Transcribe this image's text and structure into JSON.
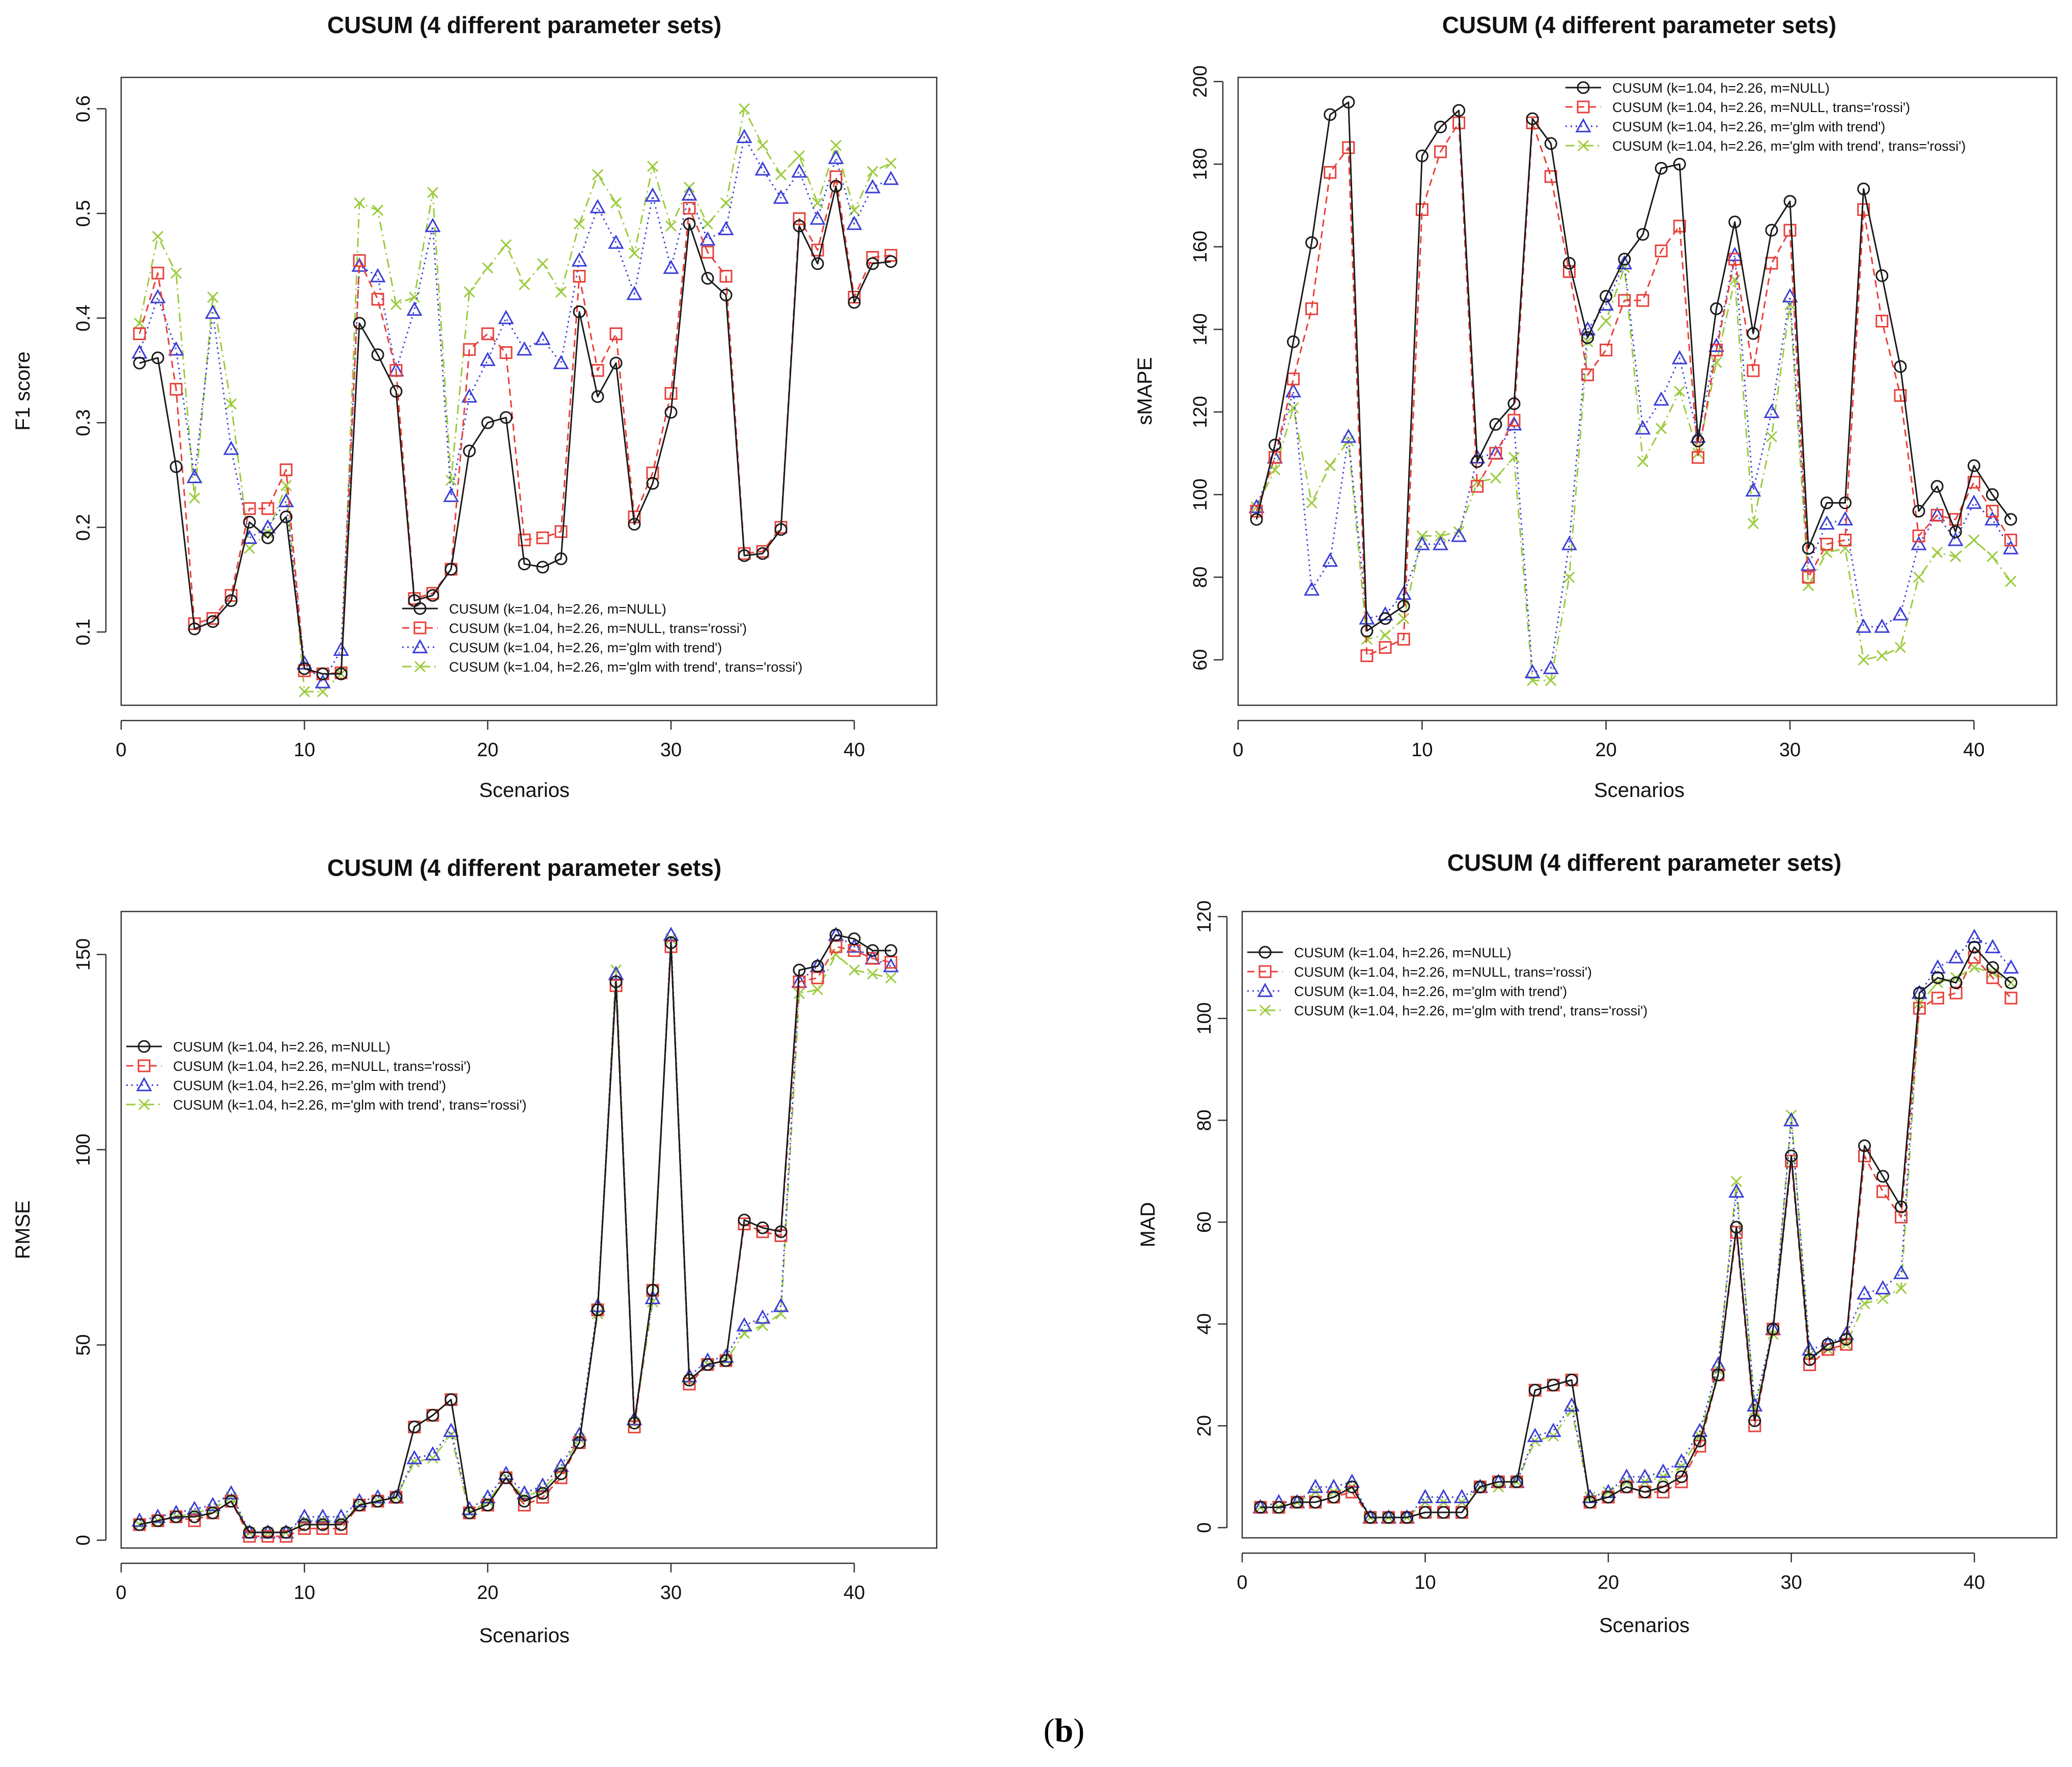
{
  "caption": {
    "open": "(",
    "label": "b",
    "close": ")"
  },
  "series_styles": [
    {
      "color": "#1a1a1a",
      "dash": "",
      "marker": "circle"
    },
    {
      "color": "#e8403a",
      "dash": "14,9",
      "marker": "square"
    },
    {
      "color": "#3b3fd6",
      "dash": "3,7",
      "marker": "triangle"
    },
    {
      "color": "#9ccb3e",
      "dash": "18,8,3,8",
      "marker": "cross"
    }
  ],
  "chart_data": [
    {
      "type": "line",
      "title": "CUSUM (4 different parameter sets)",
      "xlabel": "Scenarios",
      "ylabel": "F1 score",
      "xlim": [
        0,
        44.5
      ],
      "ylim": [
        0.03,
        0.63
      ],
      "xticks": [
        0,
        10,
        20,
        30,
        40
      ],
      "yticks": [
        0.1,
        0.2,
        0.3,
        0.4,
        0.5,
        0.6
      ],
      "ytick_labels": [
        "0.1",
        "0.2",
        "0.3",
        "0.4",
        "0.5",
        "0.6"
      ],
      "legend": "bottom-center",
      "x": [
        1,
        2,
        3,
        4,
        5,
        6,
        7,
        8,
        9,
        10,
        11,
        12,
        13,
        14,
        15,
        16,
        17,
        18,
        19,
        20,
        21,
        22,
        23,
        24,
        25,
        26,
        27,
        28,
        29,
        30,
        31,
        32,
        33,
        34,
        35,
        36,
        37,
        38,
        39,
        40,
        41,
        42
      ],
      "series": [
        {
          "name": "CUSUM (k=1.04, h=2.26, m=NULL)",
          "values": [
            0.357,
            0.362,
            0.258,
            0.103,
            0.11,
            0.13,
            0.205,
            0.19,
            0.21,
            0.065,
            0.06,
            0.06,
            0.395,
            0.365,
            0.33,
            0.13,
            0.135,
            0.16,
            0.273,
            0.3,
            0.305,
            0.165,
            0.162,
            0.17,
            0.406,
            0.325,
            0.357,
            0.203,
            0.242,
            0.31,
            0.49,
            0.438,
            0.422,
            0.173,
            0.175,
            0.198,
            0.488,
            0.452,
            0.526,
            0.415,
            0.452,
            0.454
          ]
        },
        {
          "name": "CUSUM (k=1.04, h=2.26, m=NULL, trans='rossi')",
          "values": [
            0.385,
            0.443,
            0.332,
            0.108,
            0.113,
            0.135,
            0.218,
            0.218,
            0.255,
            0.063,
            0.06,
            0.061,
            0.455,
            0.418,
            0.35,
            0.132,
            0.137,
            0.16,
            0.37,
            0.385,
            0.367,
            0.188,
            0.19,
            0.196,
            0.44,
            0.35,
            0.385,
            0.21,
            0.252,
            0.328,
            0.505,
            0.463,
            0.44,
            0.175,
            0.177,
            0.2,
            0.495,
            0.465,
            0.535,
            0.42,
            0.458,
            0.46
          ]
        },
        {
          "name": "CUSUM (k=1.04, h=2.26, m='glm with trend')",
          "values": [
            0.367,
            0.42,
            0.37,
            0.248,
            0.405,
            0.275,
            0.19,
            0.2,
            0.225,
            0.07,
            0.052,
            0.083,
            0.45,
            0.44,
            0.35,
            0.408,
            0.488,
            0.23,
            0.325,
            0.36,
            0.4,
            0.37,
            0.38,
            0.357,
            0.455,
            0.506,
            0.472,
            0.423,
            0.517,
            0.448,
            0.518,
            0.475,
            0.485,
            0.573,
            0.542,
            0.515,
            0.54,
            0.495,
            0.553,
            0.49,
            0.525,
            0.533
          ]
        },
        {
          "name": "CUSUM (k=1.04, h=2.26, m='glm with trend', trans='rossi')",
          "values": [
            0.395,
            0.478,
            0.443,
            0.228,
            0.42,
            0.318,
            0.18,
            0.195,
            0.24,
            0.043,
            0.043,
            0.06,
            0.51,
            0.503,
            0.413,
            0.42,
            0.52,
            0.245,
            0.425,
            0.448,
            0.47,
            0.432,
            0.452,
            0.425,
            0.49,
            0.537,
            0.51,
            0.462,
            0.545,
            0.488,
            0.525,
            0.49,
            0.51,
            0.6,
            0.565,
            0.537,
            0.555,
            0.51,
            0.565,
            0.503,
            0.54,
            0.548
          ]
        }
      ]
    },
    {
      "type": "line",
      "title": "CUSUM (4 different parameter sets)",
      "xlabel": "Scenarios",
      "ylabel": "sMAPE",
      "xlim": [
        0,
        44.5
      ],
      "ylim": [
        49,
        201
      ],
      "xticks": [
        0,
        10,
        20,
        30,
        40
      ],
      "yticks": [
        60,
        80,
        100,
        120,
        140,
        160,
        180,
        200
      ],
      "ytick_labels": [
        "60",
        "80",
        "100",
        "120",
        "140",
        "160",
        "180",
        "200"
      ],
      "legend": "top-center",
      "x": [
        1,
        2,
        3,
        4,
        5,
        6,
        7,
        8,
        9,
        10,
        11,
        12,
        13,
        14,
        15,
        16,
        17,
        18,
        19,
        20,
        21,
        22,
        23,
        24,
        25,
        26,
        27,
        28,
        29,
        30,
        31,
        32,
        33,
        34,
        35,
        36,
        37,
        38,
        39,
        40,
        41,
        42
      ],
      "series": [
        {
          "name": "CUSUM (k=1.04, h=2.26, m=NULL)",
          "values": [
            94,
            112,
            137,
            161,
            192,
            195,
            67,
            70,
            73,
            182,
            189,
            193,
            108,
            117,
            122,
            191,
            185,
            156,
            138,
            148,
            157,
            163,
            179,
            180,
            113,
            145,
            166,
            139,
            164,
            171,
            87,
            98,
            98,
            174,
            153,
            131,
            96,
            102,
            91,
            107,
            100,
            94
          ]
        },
        {
          "name": "CUSUM (k=1.04, h=2.26, m=NULL, trans='rossi')",
          "values": [
            96,
            109,
            128,
            145,
            178,
            184,
            61,
            63,
            65,
            169,
            183,
            190,
            102,
            110,
            118,
            190,
            177,
            154,
            129,
            135,
            147,
            147,
            159,
            165,
            109,
            135,
            157,
            130,
            156,
            164,
            80,
            88,
            89,
            169,
            142,
            124,
            90,
            95,
            94,
            103,
            96,
            89
          ]
        },
        {
          "name": "CUSUM (k=1.04, h=2.26, m='glm with trend')",
          "values": [
            97,
            109,
            125,
            77,
            84,
            114,
            70,
            71,
            76,
            88,
            88,
            90,
            109,
            110,
            117,
            57,
            58,
            88,
            140,
            146,
            156,
            116,
            123,
            133,
            114,
            136,
            158,
            101,
            120,
            148,
            83,
            93,
            94,
            68,
            68,
            71,
            88,
            95,
            89,
            98,
            94,
            87
          ]
        },
        {
          "name": "CUSUM (k=1.04, h=2.26, m='glm with trend', trans='rossi')",
          "values": [
            97,
            106,
            121,
            98,
            107,
            113,
            65,
            66,
            70,
            90,
            90,
            91,
            103,
            104,
            109,
            55,
            55,
            80,
            137,
            142,
            155,
            108,
            116,
            125,
            110,
            132,
            152,
            93,
            114,
            146,
            78,
            86,
            87,
            60,
            61,
            63,
            80,
            86,
            85,
            89,
            85,
            79
          ]
        }
      ]
    },
    {
      "type": "line",
      "title": "CUSUM (4 different parameter sets)",
      "xlabel": "Scenarios",
      "ylabel": "RMSE",
      "xlim": [
        0,
        44.5
      ],
      "ylim": [
        -2,
        161
      ],
      "xticks": [
        0,
        10,
        20,
        30,
        40
      ],
      "yticks": [
        0,
        50,
        100,
        150
      ],
      "ytick_labels": [
        "0",
        "50",
        "100",
        "150"
      ],
      "legend": "top-left",
      "x": [
        1,
        2,
        3,
        4,
        5,
        6,
        7,
        8,
        9,
        10,
        11,
        12,
        13,
        14,
        15,
        16,
        17,
        18,
        19,
        20,
        21,
        22,
        23,
        24,
        25,
        26,
        27,
        28,
        29,
        30,
        31,
        32,
        33,
        34,
        35,
        36,
        37,
        38,
        39,
        40,
        41,
        42
      ],
      "series": [
        {
          "name": "CUSUM (k=1.04, h=2.26, m=NULL)",
          "values": [
            4,
            5,
            6,
            6,
            7,
            10,
            2,
            2,
            2,
            4,
            4,
            4,
            9,
            10,
            11,
            29,
            32,
            36,
            7,
            9,
            16,
            10,
            12,
            17,
            25,
            59,
            143,
            30,
            64,
            153,
            41,
            45,
            46,
            82,
            80,
            79,
            146,
            147,
            155,
            154,
            151,
            151
          ]
        },
        {
          "name": "CUSUM (k=1.04, h=2.26, m=NULL, trans='rossi')",
          "values": [
            4,
            5,
            6,
            5,
            7,
            10,
            1,
            1,
            1,
            3,
            3,
            3,
            9,
            10,
            11,
            29,
            32,
            36,
            7,
            9,
            16,
            9,
            11,
            16,
            25,
            59,
            142,
            29,
            64,
            152,
            40,
            45,
            46,
            81,
            79,
            78,
            143,
            144,
            152,
            151,
            149,
            148
          ]
        },
        {
          "name": "CUSUM (k=1.04, h=2.26, m='glm with trend')",
          "values": [
            5,
            6,
            7,
            8,
            9,
            12,
            2,
            2,
            2,
            6,
            6,
            6,
            10,
            11,
            11,
            21,
            22,
            28,
            8,
            11,
            17,
            12,
            14,
            19,
            27,
            60,
            145,
            31,
            62,
            155,
            42,
            46,
            47,
            55,
            57,
            60,
            143,
            147,
            155,
            152,
            149,
            147
          ]
        },
        {
          "name": "CUSUM (k=1.04, h=2.26, m='glm with trend', trans='rossi')",
          "values": [
            4,
            5,
            6,
            7,
            8,
            11,
            2,
            2,
            2,
            5,
            5,
            5,
            9,
            10,
            11,
            20,
            21,
            27,
            7,
            10,
            16,
            11,
            13,
            18,
            26,
            58,
            146,
            30,
            61,
            154,
            41,
            45,
            46,
            53,
            55,
            58,
            140,
            141,
            150,
            146,
            145,
            144
          ]
        }
      ]
    },
    {
      "type": "line",
      "title": "CUSUM (4 different parameter sets)",
      "xlabel": "Scenarios",
      "ylabel": "MAD",
      "xlim": [
        0,
        44.5
      ],
      "ylim": [
        -2,
        121
      ],
      "xticks": [
        0,
        10,
        20,
        30,
        40
      ],
      "yticks": [
        0,
        20,
        40,
        60,
        80,
        100,
        120
      ],
      "ytick_labels": [
        "0",
        "20",
        "40",
        "60",
        "80",
        "100",
        "120"
      ],
      "legend": "top-left",
      "x": [
        1,
        2,
        3,
        4,
        5,
        6,
        7,
        8,
        9,
        10,
        11,
        12,
        13,
        14,
        15,
        16,
        17,
        18,
        19,
        20,
        21,
        22,
        23,
        24,
        25,
        26,
        27,
        28,
        29,
        30,
        31,
        32,
        33,
        34,
        35,
        36,
        37,
        38,
        39,
        40,
        41,
        42
      ],
      "series": [
        {
          "name": "CUSUM (k=1.04, h=2.26, m=NULL)",
          "values": [
            4,
            4,
            5,
            5,
            6,
            8,
            2,
            2,
            2,
            3,
            3,
            3,
            8,
            9,
            9,
            27,
            28,
            29,
            5,
            6,
            8,
            7,
            8,
            10,
            17,
            30,
            59,
            21,
            39,
            73,
            33,
            36,
            37,
            75,
            69,
            63,
            105,
            108,
            107,
            114,
            110,
            107
          ]
        },
        {
          "name": "CUSUM (k=1.04, h=2.26, m=NULL, trans='rossi')",
          "values": [
            4,
            4,
            5,
            5,
            6,
            7,
            2,
            2,
            2,
            3,
            3,
            3,
            8,
            9,
            9,
            27,
            28,
            29,
            5,
            6,
            8,
            7,
            7,
            9,
            16,
            30,
            58,
            20,
            39,
            72,
            32,
            35,
            36,
            73,
            66,
            61,
            102,
            104,
            105,
            112,
            108,
            104
          ]
        },
        {
          "name": "CUSUM (k=1.04, h=2.26, m='glm with trend')",
          "values": [
            4,
            5,
            5,
            8,
            8,
            9,
            2,
            2,
            2,
            6,
            6,
            6,
            8,
            9,
            9,
            18,
            19,
            24,
            6,
            7,
            10,
            10,
            11,
            13,
            19,
            32,
            66,
            24,
            39,
            80,
            35,
            36,
            38,
            46,
            47,
            50,
            105,
            110,
            112,
            116,
            114,
            110
          ]
        },
        {
          "name": "CUSUM (k=1.04, h=2.26, m='glm with trend', trans='rossi')",
          "values": [
            4,
            4,
            5,
            7,
            7,
            8,
            2,
            2,
            2,
            5,
            5,
            5,
            8,
            8,
            9,
            17,
            18,
            23,
            6,
            7,
            9,
            9,
            10,
            12,
            18,
            31,
            68,
            23,
            38,
            81,
            34,
            35,
            36,
            44,
            45,
            47,
            103,
            107,
            108,
            110,
            109,
            107
          ]
        }
      ]
    }
  ]
}
